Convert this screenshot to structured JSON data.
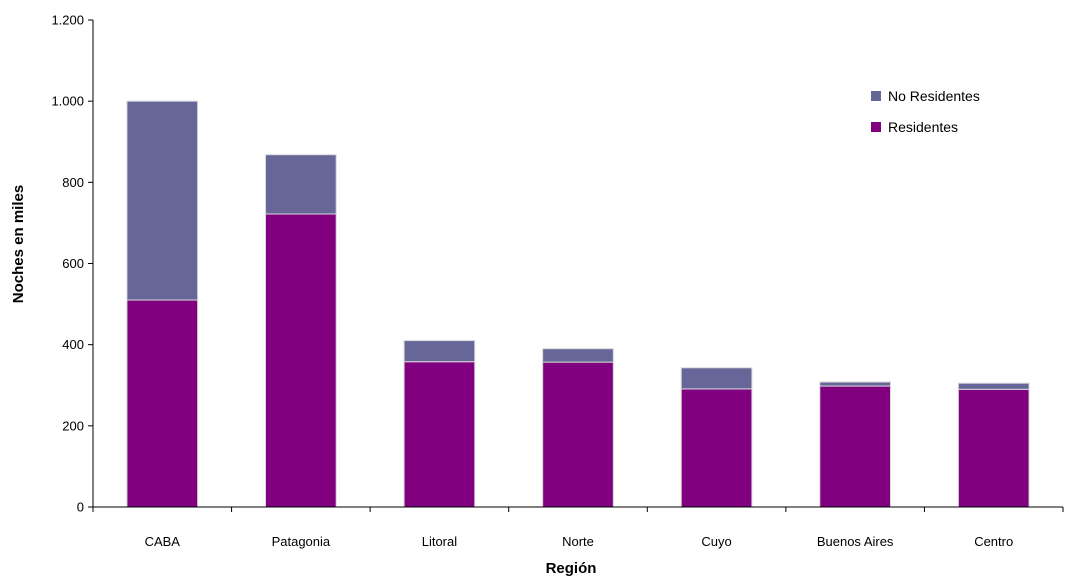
{
  "chart_data": {
    "type": "bar",
    "stacked": true,
    "xlabel": "Región",
    "ylabel": "Noches en miles",
    "categories": [
      "CABA",
      "Patagonia",
      "Litoral",
      "Norte",
      "Cuyo",
      "Buenos Aires",
      "Centro"
    ],
    "series": [
      {
        "name": "Residentes",
        "color": "#800080",
        "values": [
          510,
          722,
          358,
          357,
          291,
          298,
          290
        ]
      },
      {
        "name": "No Residentes",
        "color": "#666699",
        "values": [
          490,
          146,
          52,
          33,
          52,
          10,
          15
        ]
      }
    ],
    "ylim": [
      0,
      1200
    ],
    "yticks": [
      0,
      200,
      400,
      600,
      800,
      1000,
      1200
    ],
    "ytick_labels": [
      "0",
      "200",
      "400",
      "600",
      "800",
      "1.000",
      "1.200"
    ],
    "grid": false,
    "legend": {
      "position": "top-right",
      "order": [
        "No Residentes",
        "Residentes"
      ]
    }
  }
}
